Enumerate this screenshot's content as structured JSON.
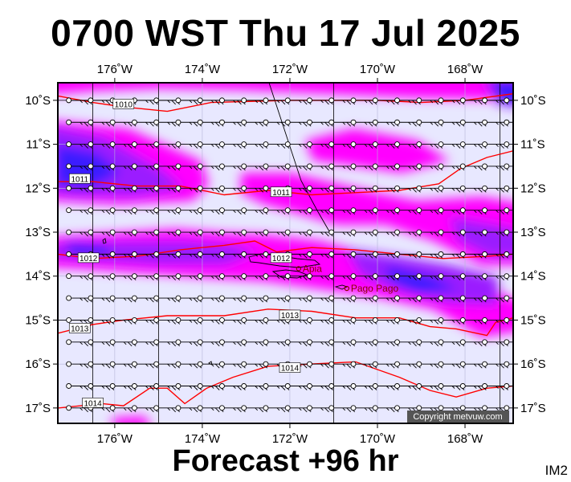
{
  "title": "0700 WST Thu 17 Jul 2025",
  "footer": "Forecast +96 hr",
  "tag": "IM2",
  "copyright": "Copyright metvuw.com",
  "map": {
    "lon_min": -177.3,
    "lon_max": -166.9,
    "lat_min": -17.35,
    "lat_max": -9.6,
    "lon_ticks": [
      {
        "value": -176,
        "label": "176˚W"
      },
      {
        "value": -174,
        "label": "174˚W"
      },
      {
        "value": -172,
        "label": "172˚W"
      },
      {
        "value": -170,
        "label": "170˚W"
      },
      {
        "value": -168,
        "label": "168˚W"
      }
    ],
    "lat_ticks": [
      {
        "value": -10,
        "label": "10˚S"
      },
      {
        "value": -11,
        "label": "11˚S"
      },
      {
        "value": -12,
        "label": "12˚S"
      },
      {
        "value": -13,
        "label": "13˚S"
      },
      {
        "value": -14,
        "label": "14˚S"
      },
      {
        "value": -15,
        "label": "15˚S"
      },
      {
        "value": -16,
        "label": "16˚S"
      },
      {
        "value": -17,
        "label": "17˚S"
      }
    ],
    "isobar_labels": [
      {
        "text": "1010",
        "lon": -175.8,
        "lat": -10.1
      },
      {
        "text": "1011",
        "lon": -176.8,
        "lat": -11.8
      },
      {
        "text": "1011",
        "lon": -172.2,
        "lat": -12.1
      },
      {
        "text": "1012",
        "lon": -176.6,
        "lat": -13.6
      },
      {
        "text": "1012",
        "lon": -172.2,
        "lat": -13.6
      },
      {
        "text": "1013",
        "lon": -172.0,
        "lat": -14.9
      },
      {
        "text": "1013",
        "lon": -176.8,
        "lat": -15.2
      },
      {
        "text": "1014",
        "lon": -172.0,
        "lat": -16.1
      },
      {
        "text": "1014",
        "lon": -176.5,
        "lat": -16.9
      }
    ],
    "places": [
      {
        "name": "Apia",
        "lon": -171.8,
        "lat": -13.83
      },
      {
        "name": "Pago Pago",
        "lon": -170.7,
        "lat": -14.28
      }
    ],
    "isobars": [
      {
        "label": "1010",
        "points": [
          [
            -177.3,
            -9.9
          ],
          [
            -176.5,
            -10.05
          ],
          [
            -175.8,
            -10.15
          ],
          [
            -174.8,
            -10.25
          ],
          [
            -173.8,
            -10.05
          ],
          [
            -172,
            -10.0
          ],
          [
            -170,
            -10.0
          ],
          [
            -169,
            -10.05
          ],
          [
            -168,
            -10.0
          ],
          [
            -166.9,
            -9.85
          ]
        ]
      },
      {
        "label": "1011",
        "points": [
          [
            -177.3,
            -11.85
          ],
          [
            -176.5,
            -11.85
          ],
          [
            -175.5,
            -11.95
          ],
          [
            -174.5,
            -11.95
          ],
          [
            -173.5,
            -12.15
          ],
          [
            -172.5,
            -12.05
          ],
          [
            -171.5,
            -12.15
          ],
          [
            -170.5,
            -12.1
          ],
          [
            -169.5,
            -12.05
          ],
          [
            -168.6,
            -11.9
          ],
          [
            -168.1,
            -11.55
          ],
          [
            -167.5,
            -11.3
          ],
          [
            -166.9,
            -11.15
          ]
        ]
      },
      {
        "label": "1012",
        "points": [
          [
            -177.3,
            -13.5
          ],
          [
            -176.5,
            -13.6
          ],
          [
            -175.5,
            -13.55
          ],
          [
            -174.5,
            -13.4
          ],
          [
            -173.5,
            -13.3
          ],
          [
            -172.8,
            -13.2
          ],
          [
            -172.3,
            -13.45
          ],
          [
            -171.5,
            -13.35
          ],
          [
            -170.5,
            -13.4
          ],
          [
            -169.5,
            -13.5
          ],
          [
            -168.5,
            -13.6
          ],
          [
            -167.5,
            -13.55
          ],
          [
            -166.9,
            -13.5
          ]
        ]
      },
      {
        "label": "1013",
        "points": [
          [
            -177.3,
            -15.3
          ],
          [
            -176.5,
            -15.1
          ],
          [
            -175.8,
            -15.0
          ],
          [
            -174.8,
            -14.9
          ],
          [
            -173.5,
            -14.9
          ],
          [
            -172.5,
            -14.75
          ],
          [
            -171.5,
            -14.8
          ],
          [
            -170.5,
            -14.95
          ],
          [
            -169.5,
            -14.95
          ],
          [
            -168.8,
            -15.15
          ],
          [
            -168.2,
            -15.2
          ],
          [
            -167.5,
            -15.35
          ],
          [
            -167.3,
            -15.05
          ],
          [
            -166.9,
            -14.95
          ]
        ]
      },
      {
        "label": "1014",
        "points": [
          [
            -177.3,
            -17.0
          ],
          [
            -176.3,
            -16.9
          ],
          [
            -175.8,
            -16.95
          ],
          [
            -175.2,
            -16.55
          ],
          [
            -174.8,
            -16.55
          ],
          [
            -174.4,
            -16.9
          ],
          [
            -173.9,
            -16.55
          ],
          [
            -173.3,
            -16.3
          ],
          [
            -172.5,
            -16.05
          ],
          [
            -171.5,
            -16.0
          ],
          [
            -170.5,
            -15.95
          ],
          [
            -169.5,
            -16.3
          ],
          [
            -168.8,
            -16.6
          ],
          [
            -168.2,
            -16.75
          ],
          [
            -167.5,
            -16.55
          ],
          [
            -166.9,
            -16.5
          ]
        ]
      }
    ],
    "colors": {
      "background": "#e8e8ff",
      "magenta": "#ff00ff",
      "violet": "#9b1aff",
      "blue": "#3b1cff",
      "isobar": "#ff0000",
      "grid": "#000000"
    }
  }
}
